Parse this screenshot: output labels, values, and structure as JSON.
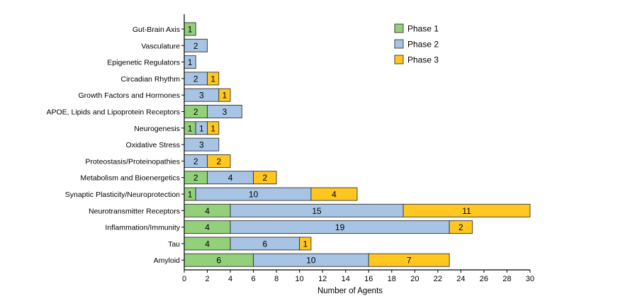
{
  "chart_data": {
    "type": "bar",
    "orientation": "horizontal",
    "stacked": true,
    "xlabel": "Number of Agents",
    "xlim": [
      0,
      30
    ],
    "xticks": [
      0,
      2,
      4,
      6,
      8,
      10,
      12,
      14,
      16,
      18,
      20,
      22,
      24,
      26,
      28,
      30
    ],
    "categories": [
      "Gut-Brain Axis",
      "Vasculature",
      "Epigenetic Regulators",
      "Circadian Rhythm",
      "Growth Factors and Hormones",
      "APOE, Lipids and Lipoprotein Receptors",
      "Neurogenesis",
      "Oxidative Stress",
      "Proteostasis/Proteinopathies",
      "Metabolism and Bioenergetics",
      "Synaptic Plasticity/Neuroprotection",
      "Neurotransmitter Receptors",
      "Inflammation/Immunity",
      "Tau",
      "Amyloid"
    ],
    "series": [
      {
        "name": "Phase 1",
        "color": "#92d07a",
        "values": [
          1,
          0,
          0,
          0,
          0,
          2,
          1,
          0,
          0,
          2,
          1,
          4,
          4,
          4,
          6
        ]
      },
      {
        "name": "Phase 2",
        "color": "#a8c4e4",
        "values": [
          0,
          2,
          1,
          2,
          3,
          3,
          1,
          3,
          2,
          4,
          10,
          15,
          19,
          6,
          10
        ]
      },
      {
        "name": "Phase 3",
        "color": "#ffc720",
        "values": [
          0,
          0,
          0,
          1,
          1,
          0,
          1,
          0,
          2,
          2,
          4,
          11,
          2,
          1,
          7
        ]
      }
    ],
    "legend_position": "top-right",
    "grid": false
  }
}
